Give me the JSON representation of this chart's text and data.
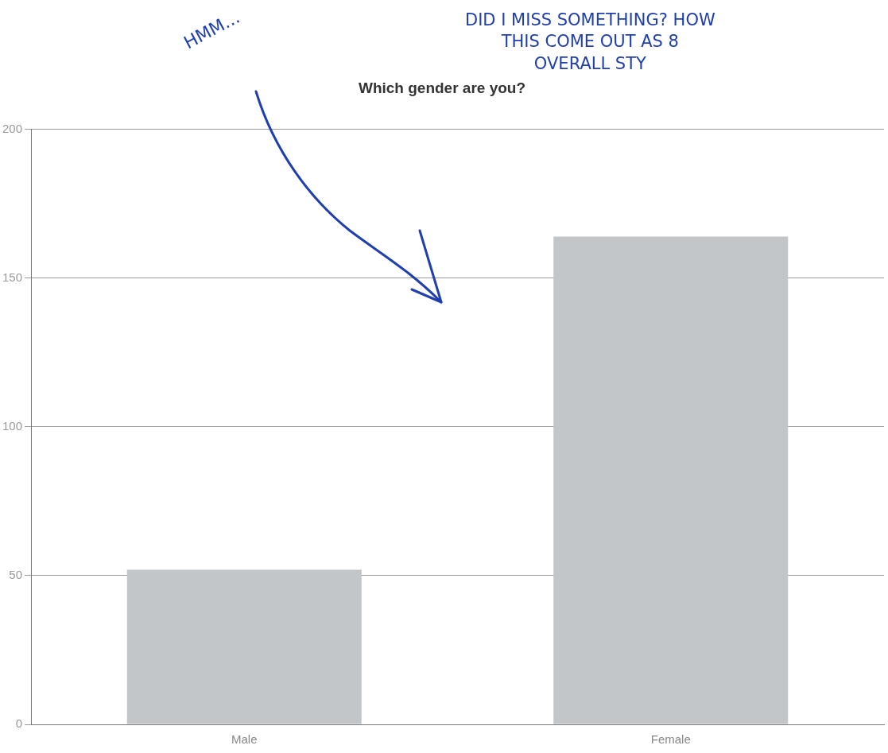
{
  "chart_data": {
    "type": "bar",
    "title": "Which gender are you?",
    "categories": [
      "Male",
      "Female"
    ],
    "values": [
      52,
      164
    ],
    "color": "#c3c6c9",
    "ylim": [
      0,
      200
    ],
    "yticks": [
      0,
      50,
      100,
      150,
      200
    ],
    "grid": "y",
    "legend": false,
    "annotations": [
      "HMM...",
      "DID I MISS SOMETHING? HOW\nTHIS COME OUT AS 8\nOVERALL STY"
    ]
  }
}
